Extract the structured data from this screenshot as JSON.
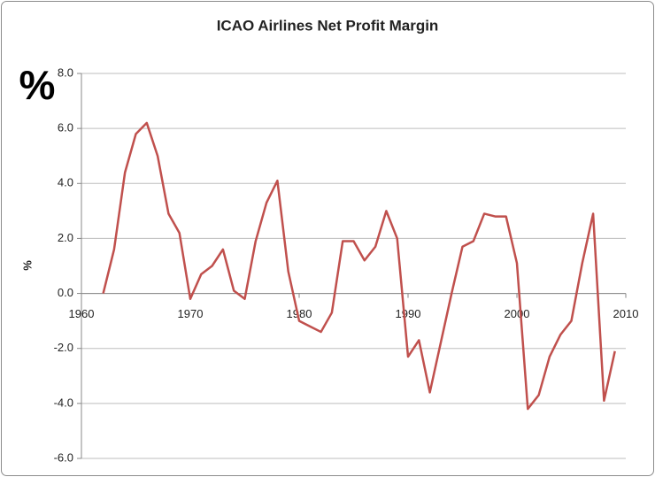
{
  "chart_data": {
    "type": "line",
    "title": "ICAO Airlines Net Profit Margin",
    "annotation": "%",
    "y_label": "%",
    "x": [
      1962,
      1963,
      1964,
      1965,
      1966,
      1967,
      1968,
      1969,
      1970,
      1971,
      1972,
      1973,
      1974,
      1975,
      1976,
      1977,
      1978,
      1979,
      1980,
      1981,
      1982,
      1983,
      1984,
      1985,
      1986,
      1987,
      1988,
      1989,
      1990,
      1991,
      1992,
      1993,
      1994,
      1995,
      1996,
      1997,
      1998,
      1999,
      2000,
      2001,
      2002,
      2003,
      2004,
      2005,
      2006,
      2007,
      2008,
      2009
    ],
    "series": [
      {
        "name": "Net Profit Margin",
        "color": "#c0504d",
        "values": [
          0.0,
          1.6,
          4.4,
          5.8,
          6.2,
          5.0,
          2.9,
          2.2,
          -0.2,
          0.7,
          1.0,
          1.6,
          0.1,
          -0.2,
          1.9,
          3.3,
          4.1,
          0.8,
          -1.0,
          -1.2,
          -1.4,
          -0.7,
          1.9,
          1.9,
          1.2,
          1.7,
          3.0,
          2.0,
          -2.3,
          -1.7,
          -3.6,
          -1.8,
          0.0,
          1.7,
          1.9,
          2.9,
          2.8,
          2.8,
          1.1,
          -4.2,
          -3.7,
          -2.3,
          -1.5,
          -1.0,
          1.1,
          2.9,
          -3.9,
          -2.1
        ]
      }
    ],
    "xlim": [
      1960,
      2010
    ],
    "xticks": [
      1960,
      1970,
      1980,
      1990,
      2000,
      2010
    ],
    "ylim": [
      -6,
      8
    ],
    "yticks": [
      {
        "value": -6,
        "label": "-6.0"
      },
      {
        "value": -4,
        "label": "-4.0"
      },
      {
        "value": -2,
        "label": "-2.0"
      },
      {
        "value": 0,
        "label": "0.0"
      },
      {
        "value": 2,
        "label": "2.0"
      },
      {
        "value": 4,
        "label": "4.0"
      },
      {
        "value": 6,
        "label": "6.0"
      },
      {
        "value": 8,
        "label": "8.0"
      }
    ],
    "grid": true
  }
}
